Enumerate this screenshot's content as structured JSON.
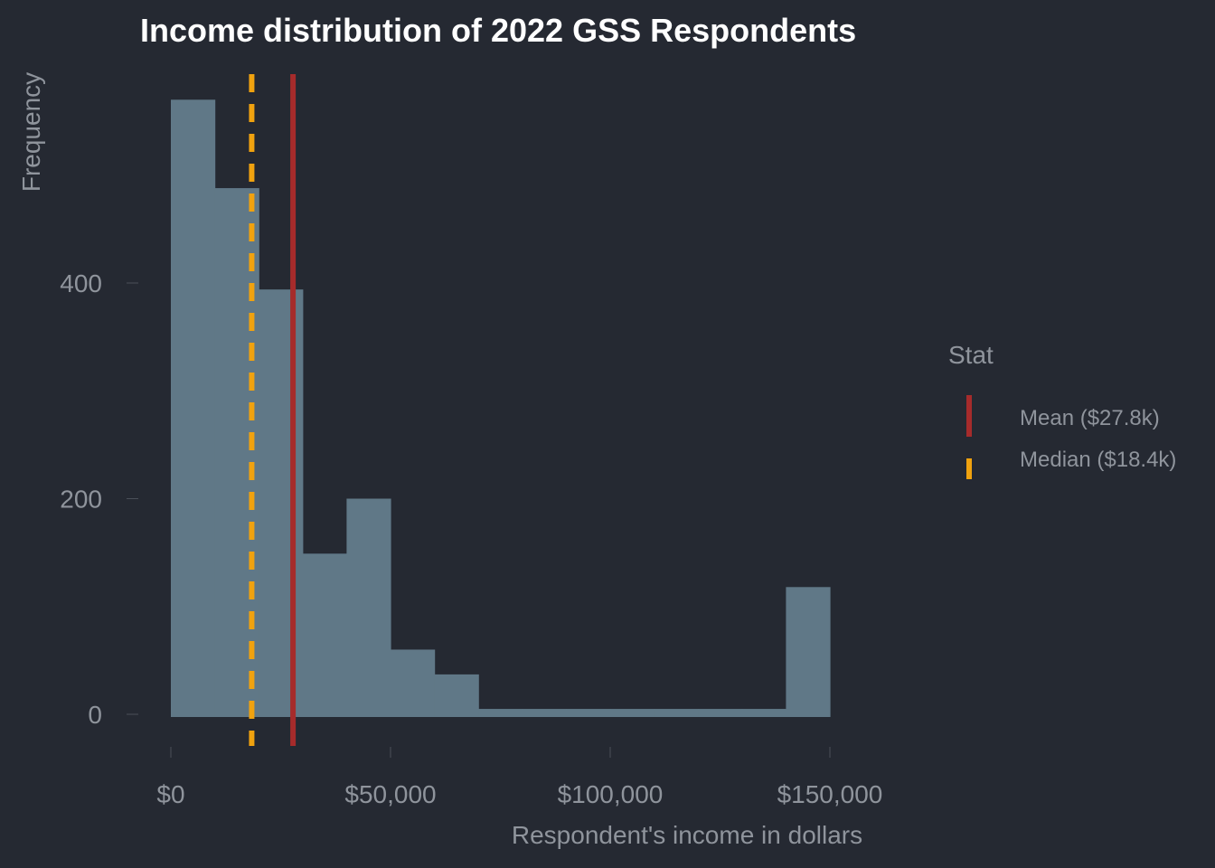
{
  "chart_data": {
    "type": "bar",
    "title": "Income distribution of 2022 GSS Respondents",
    "xlabel": "Respondent's income in dollars",
    "ylabel": "Frequency",
    "xlim": [
      0,
      150000
    ],
    "ylim": [
      0,
      570
    ],
    "x_ticks": [
      {
        "value": 0,
        "label": "$0"
      },
      {
        "value": 50000,
        "label": "$50,000"
      },
      {
        "value": 100000,
        "label": "$100,000"
      },
      {
        "value": 150000,
        "label": "$150,000"
      }
    ],
    "y_ticks": [
      {
        "value": 0,
        "label": "0"
      },
      {
        "value": 200,
        "label": "200"
      },
      {
        "value": 400,
        "label": "400"
      }
    ],
    "bins": [
      {
        "x0": 0,
        "x1": 10000,
        "count": 570
      },
      {
        "x0": 10000,
        "x1": 20000,
        "count": 488
      },
      {
        "x0": 20000,
        "x1": 30000,
        "count": 394
      },
      {
        "x0": 30000,
        "x1": 40000,
        "count": 149
      },
      {
        "x0": 40000,
        "x1": 50000,
        "count": 200
      },
      {
        "x0": 50000,
        "x1": 60000,
        "count": 60
      },
      {
        "x0": 60000,
        "x1": 70000,
        "count": 37
      },
      {
        "x0": 70000,
        "x1": 80000,
        "count": 5
      },
      {
        "x0": 80000,
        "x1": 90000,
        "count": 5
      },
      {
        "x0": 90000,
        "x1": 100000,
        "count": 5
      },
      {
        "x0": 100000,
        "x1": 110000,
        "count": 5
      },
      {
        "x0": 110000,
        "x1": 120000,
        "count": 5
      },
      {
        "x0": 120000,
        "x1": 130000,
        "count": 5
      },
      {
        "x0": 130000,
        "x1": 140000,
        "count": 5
      },
      {
        "x0": 140000,
        "x1": 150000,
        "count": 118
      }
    ],
    "bar_color": "#607887",
    "lines": [
      {
        "name": "Mean ($27.8k)",
        "x": 27800,
        "color": "#a62b2b",
        "dash": false
      },
      {
        "name": "Median ($18.4k)",
        "x": 18400,
        "color": "#f0a20f",
        "dash": true
      }
    ],
    "legend": {
      "title": "Stat",
      "position": "right"
    },
    "grid": false
  }
}
